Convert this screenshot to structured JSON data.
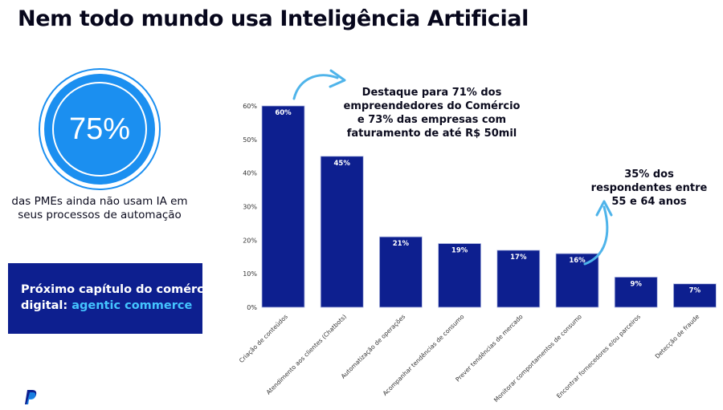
{
  "title": "Nem todo mundo usa Inteligência Artificial",
  "stat": {
    "value": "75%",
    "caption": "das PMEs ainda não usam IA em seus processos de automação"
  },
  "next_chapter": {
    "line1": "Próximo capítulo do comércio",
    "line2_prefix": "digital: ",
    "line2_accent": "agentic commerce"
  },
  "callouts": {
    "top": "Destaque para 71% dos empreendedores do Comércio e 73% das empresas com faturamento de até R$ 50mil",
    "right": "35% dos respondentes entre 55 e 64 anos"
  },
  "colors": {
    "bar": "#0d1f8f",
    "accent": "#1b8ff0",
    "arrow": "#4fb4ea"
  },
  "chart_data": {
    "type": "bar",
    "title": "",
    "xlabel": "",
    "ylabel": "",
    "ylim": [
      0,
      60
    ],
    "yticks": [
      "0%",
      "10%",
      "20%",
      "30%",
      "40%",
      "50%",
      "60%"
    ],
    "grid": false,
    "categories": [
      "Criação de conteúdos",
      "Atendimento aos clientes (Chatbots)",
      "Automatização de operações",
      "Acompanhar tendências de consumo",
      "Prever tendências de mercado",
      "Monitorar comportamentos de consumo",
      "Encontrar fornecedores e/ou parceiros",
      "Detecção de fraude"
    ],
    "values": [
      60,
      45,
      21,
      19,
      17,
      16,
      9,
      7
    ],
    "labels": [
      "60%",
      "45%",
      "21%",
      "19%",
      "17%",
      "16%",
      "9%",
      "7%"
    ]
  }
}
